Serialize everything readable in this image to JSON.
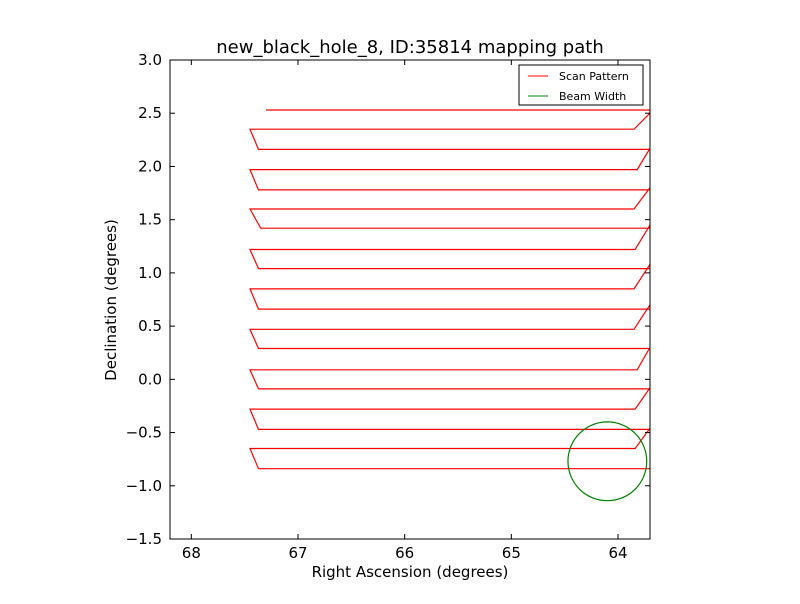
{
  "chart_data": {
    "type": "line",
    "title": "new_black_hole_8, ID:35814 mapping path",
    "xlabel": "Right Ascension (degrees)",
    "ylabel": "Declination (degrees)",
    "xlim": [
      68.2,
      63.7
    ],
    "ylim": [
      -1.5,
      3.0
    ],
    "x_inverted": true,
    "xticks": [
      68,
      67,
      66,
      65,
      64
    ],
    "xtick_labels": [
      "68",
      "67",
      "66",
      "65",
      "64"
    ],
    "yticks": [
      -1.5,
      -1.0,
      -0.5,
      0.0,
      0.5,
      1.0,
      1.5,
      2.0,
      2.5,
      3.0
    ],
    "ytick_labels": [
      "−1.5",
      "−1.0",
      "−0.5",
      "0.0",
      "0.5",
      "1.0",
      "1.5",
      "2.0",
      "2.5",
      "3.0"
    ],
    "grid": false,
    "legend_position": "top-right",
    "series": [
      {
        "name": "Scan Pattern",
        "color": "#ff0000",
        "style": "line",
        "x": [
          67.3,
          63.7,
          63.7,
          63.85,
          67.45,
          67.37,
          63.7,
          63.7,
          63.82,
          67.45,
          67.37,
          63.7,
          63.7,
          63.85,
          67.45,
          67.35,
          63.7,
          63.7,
          63.84,
          67.45,
          67.37,
          63.7,
          63.7,
          63.85,
          67.45,
          67.37,
          63.7,
          63.7,
          63.85,
          67.45,
          67.37,
          63.7,
          63.7,
          63.82,
          67.45,
          67.37,
          63.7,
          63.7,
          63.84,
          67.45,
          67.37,
          63.7,
          63.7,
          63.84,
          67.45,
          67.37,
          63.7
        ],
        "y": [
          2.53,
          2.53,
          2.5,
          2.35,
          2.35,
          2.16,
          2.16,
          2.17,
          1.97,
          1.97,
          1.78,
          1.78,
          1.8,
          1.6,
          1.6,
          1.42,
          1.42,
          1.45,
          1.22,
          1.22,
          1.04,
          1.04,
          1.08,
          0.85,
          0.85,
          0.66,
          0.66,
          0.7,
          0.47,
          0.47,
          0.29,
          0.29,
          0.3,
          0.09,
          0.09,
          -0.09,
          -0.09,
          -0.08,
          -0.28,
          -0.28,
          -0.47,
          -0.47,
          -0.46,
          -0.65,
          -0.65,
          -0.84,
          -0.84
        ]
      },
      {
        "name": "Beam Width",
        "color": "#008000",
        "style": "circle",
        "center": [
          64.1,
          -0.77
        ],
        "radius_dec": 0.37
      }
    ]
  }
}
